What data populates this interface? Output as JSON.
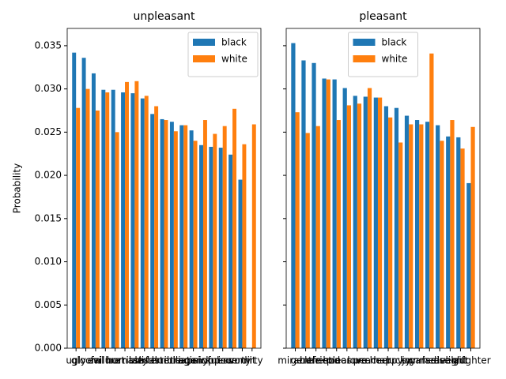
{
  "chart_data": [
    {
      "type": "bar",
      "title": "unpleasant",
      "y_label": "Probability",
      "categories": [
        "ugly",
        "gloom",
        "evil",
        "failure",
        "hurt",
        "horrible",
        "nasty",
        "awful",
        "disaster",
        "terrible",
        "humiliate",
        "tragic",
        "agony",
        "painful",
        "sickness",
        "prison",
        "poverty",
        "vomit",
        "dirty"
      ],
      "series": [
        {
          "name": "black",
          "color": "#1f77b4",
          "values": [
            0.0342,
            0.0336,
            0.0318,
            0.0299,
            0.0299,
            0.0296,
            0.0295,
            0.0289,
            0.0271,
            0.0265,
            0.0262,
            0.0258,
            0.0252,
            0.0235,
            0.0233,
            0.0232,
            0.0224,
            0.0195,
            0
          ]
        },
        {
          "name": "white",
          "color": "#ff7f0e",
          "values": [
            0.0278,
            0.03,
            0.0275,
            0.0296,
            0.025,
            0.0308,
            0.0309,
            0.0292,
            0.028,
            0.0264,
            0.0251,
            0.0258,
            0.024,
            0.0264,
            0.0248,
            0.0257,
            0.0277,
            0.0236,
            0.0259
          ]
        }
      ],
      "ylim": [
        0,
        0.037
      ],
      "yticks": [
        {
          "value": 0,
          "label": "0.000"
        },
        {
          "value": 0.005,
          "label": "0.005"
        },
        {
          "value": 0.01,
          "label": "0.010"
        },
        {
          "value": 0.015,
          "label": "0.015"
        },
        {
          "value": 0.02,
          "label": "0.020"
        },
        {
          "value": 0.025,
          "label": "0.025"
        },
        {
          "value": 0.03,
          "label": "0.030"
        },
        {
          "value": 0.035,
          "label": "0.035"
        }
      ],
      "legend": "upper right"
    },
    {
      "type": "bar",
      "title": "pleasant",
      "categories": [
        "miracle",
        "gentle",
        "honest",
        "friend",
        "honor",
        "pleasure",
        "love",
        "peace",
        "cheer",
        "happy",
        "lucky",
        "joy",
        "sunrise",
        "paradise",
        "heaven",
        "delight",
        "gift",
        "laughter"
      ],
      "series": [
        {
          "name": "black",
          "color": "#1f77b4",
          "values": [
            0.0353,
            0.0333,
            0.033,
            0.0312,
            0.0311,
            0.0301,
            0.0292,
            0.0291,
            0.029,
            0.028,
            0.0278,
            0.0269,
            0.0264,
            0.0262,
            0.0258,
            0.0245,
            0.0244,
            0.0191
          ]
        },
        {
          "name": "white",
          "color": "#ff7f0e",
          "values": [
            0.0273,
            0.0249,
            0.0257,
            0.0311,
            0.0264,
            0.0281,
            0.0283,
            0.0301,
            0.029,
            0.0267,
            0.0238,
            0.0259,
            0.0259,
            0.0341,
            0.024,
            0.0264,
            0.0231,
            0.0256
          ]
        }
      ],
      "ylim": [
        0,
        0.037
      ],
      "yticks": [
        0,
        0.005,
        0.01,
        0.015,
        0.02,
        0.025,
        0.03,
        0.035
      ],
      "legend": "upper center"
    }
  ]
}
